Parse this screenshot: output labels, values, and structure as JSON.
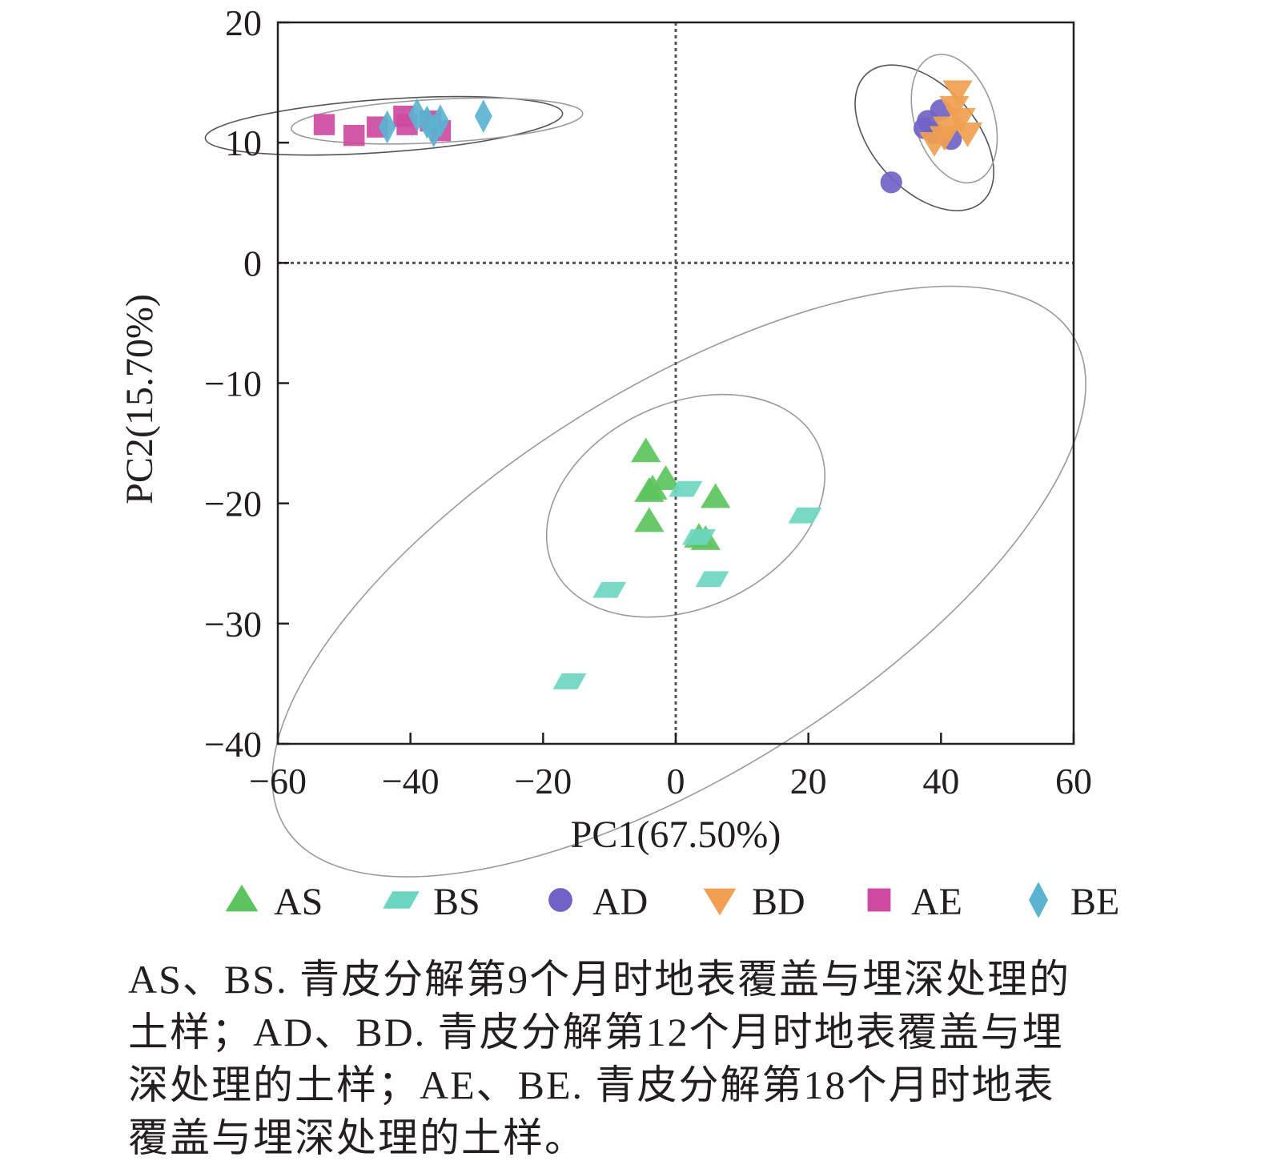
{
  "chart_data": {
    "type": "scatter",
    "xlabel": "PC1(67.50%)",
    "ylabel": "PC2(15.70%)",
    "xlim": [
      -60,
      60
    ],
    "ylim": [
      -40,
      20
    ],
    "xticks": [
      -60,
      -40,
      -20,
      0,
      20,
      40,
      60
    ],
    "yticks": [
      -40,
      -30,
      -20,
      -10,
      0,
      10,
      20
    ],
    "xtick_labels": [
      "−60",
      "−40",
      "−20",
      "0",
      "20",
      "40",
      "60"
    ],
    "ytick_labels": [
      "−40",
      "−30",
      "−20",
      "−10",
      "0",
      "10",
      "20"
    ],
    "zero_lines": true,
    "grid": false,
    "legend_position": "bottom",
    "series": [
      {
        "name": "AS",
        "marker": "triangle-up",
        "color": "#5cc45c",
        "x": [
          -4.5,
          -1.5,
          -4,
          -3.5,
          -4,
          6,
          3.5,
          4.5
        ],
        "y": [
          -15.7,
          -18,
          -19,
          -18.8,
          -21.5,
          -19.5,
          -22.8,
          -23
        ]
      },
      {
        "name": "BS",
        "marker": "parallelogram",
        "color": "#6dd6c0",
        "x": [
          -16,
          -10,
          1.5,
          3.5,
          5.5,
          19.5
        ],
        "y": [
          -34.8,
          -27.2,
          -18.8,
          -22.8,
          -26.3,
          -21
        ]
      },
      {
        "name": "AD",
        "marker": "circle",
        "color": "#6f63c7",
        "x": [
          32.5,
          37.5,
          38,
          40,
          41.5,
          39
        ],
        "y": [
          6.7,
          11.2,
          11.8,
          12.7,
          10.3,
          10.8
        ]
      },
      {
        "name": "BD",
        "marker": "triangle-down",
        "color": "#f0a050",
        "x": [
          39,
          41,
          42.5,
          44,
          42,
          40.5,
          43
        ],
        "y": [
          10,
          11.3,
          14.3,
          10.8,
          13,
          10.5,
          12
        ]
      },
      {
        "name": "AE",
        "marker": "square",
        "color": "#cc4aa0",
        "x": [
          -53,
          -48.5,
          -45,
          -41,
          -40.5,
          -37,
          -35.5
        ],
        "y": [
          11.5,
          10.6,
          11.3,
          12.2,
          11.5,
          11.8,
          11
        ]
      },
      {
        "name": "BE",
        "marker": "diamond",
        "color": "#5ab3d0",
        "x": [
          -43.5,
          -39,
          -37.5,
          -36.5,
          -35.5,
          -29
        ],
        "y": [
          11.3,
          12.3,
          11.7,
          11,
          11.8,
          12.2
        ]
      }
    ],
    "ellipses": [
      {
        "group": "AS",
        "cx": 1.5,
        "cy": -20.2,
        "rx": 22,
        "ry": 8.5,
        "angle_deg": 25
      },
      {
        "group": "BS",
        "cx": 0.5,
        "cy": -26.5,
        "rx": 70,
        "ry": 16,
        "angle_deg": 32
      },
      {
        "group": "AD",
        "cx": 37.5,
        "cy": 10.4,
        "rx": 13,
        "ry": 4.3,
        "angle_deg": -48
      },
      {
        "group": "BD",
        "cx": 42,
        "cy": 12,
        "rx": 10,
        "ry": 3.3,
        "angle_deg": -72
      },
      {
        "group": "AE",
        "cx": -44,
        "cy": 11.4,
        "rx": 27,
        "ry": 2.2,
        "angle_deg": 4
      },
      {
        "group": "BE",
        "cx": -36,
        "cy": 11.8,
        "rx": 22,
        "ry": 1.8,
        "angle_deg": 3
      }
    ]
  },
  "caption": {
    "lines": [
      "AS、BS. 青皮分解第9个月时地表覆盖与埋深处理的",
      "土样；AD、BD. 青皮分解第12个月时地表覆盖与埋",
      "深处理的土样；AE、BE. 青皮分解第18个月时地表",
      "覆盖与埋深处理的土样。"
    ]
  }
}
